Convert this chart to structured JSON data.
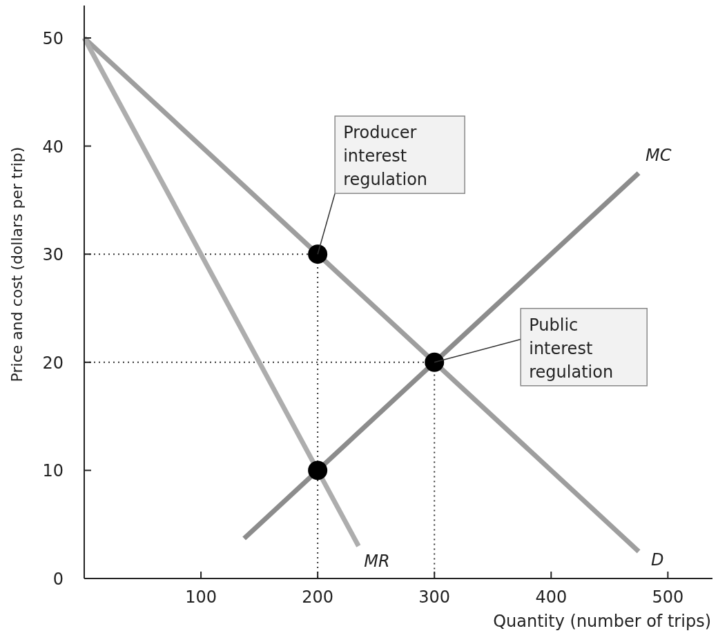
{
  "chart_data": {
    "type": "line",
    "xlabel": "Quantity (number of trips)",
    "ylabel": "Price and cost (dollars per trip)",
    "xlim": [
      0,
      540
    ],
    "ylim": [
      0,
      53
    ],
    "xticks": [
      100,
      200,
      300,
      400,
      500
    ],
    "yticks": [
      0,
      10,
      20,
      30,
      40,
      50
    ],
    "series": [
      {
        "x": [
          0,
          200,
          200
        ],
        "values": [
          30,
          30,
          0
        ],
        "color": "#333333",
        "line_style": "dotted"
      },
      {
        "x": [
          0,
          300,
          300
        ],
        "values": [
          20,
          20,
          0
        ],
        "color": "#333333",
        "line_style": "dotted"
      },
      {
        "name": "D",
        "x": [
          0,
          475
        ],
        "values": [
          50,
          2.5
        ],
        "color": "#9e9e9e"
      },
      {
        "name": "MR",
        "x": [
          0,
          235
        ],
        "values": [
          50,
          3
        ],
        "color": "#adadad"
      },
      {
        "name": "MC",
        "x": [
          137,
          475
        ],
        "values": [
          3.7,
          37.5
        ],
        "color": "#8c8c8c"
      },
      {
        "type": "scatter",
        "marker": "circle",
        "x": [
          200,
          300,
          200
        ],
        "values": [
          30,
          20,
          10
        ],
        "color": "#000000"
      }
    ],
    "annotations": [
      {
        "text": "Producer interest regulation",
        "x": 200,
        "y": 30
      },
      {
        "text": "Public interest regulation",
        "x": 300,
        "y": 20
      }
    ]
  }
}
